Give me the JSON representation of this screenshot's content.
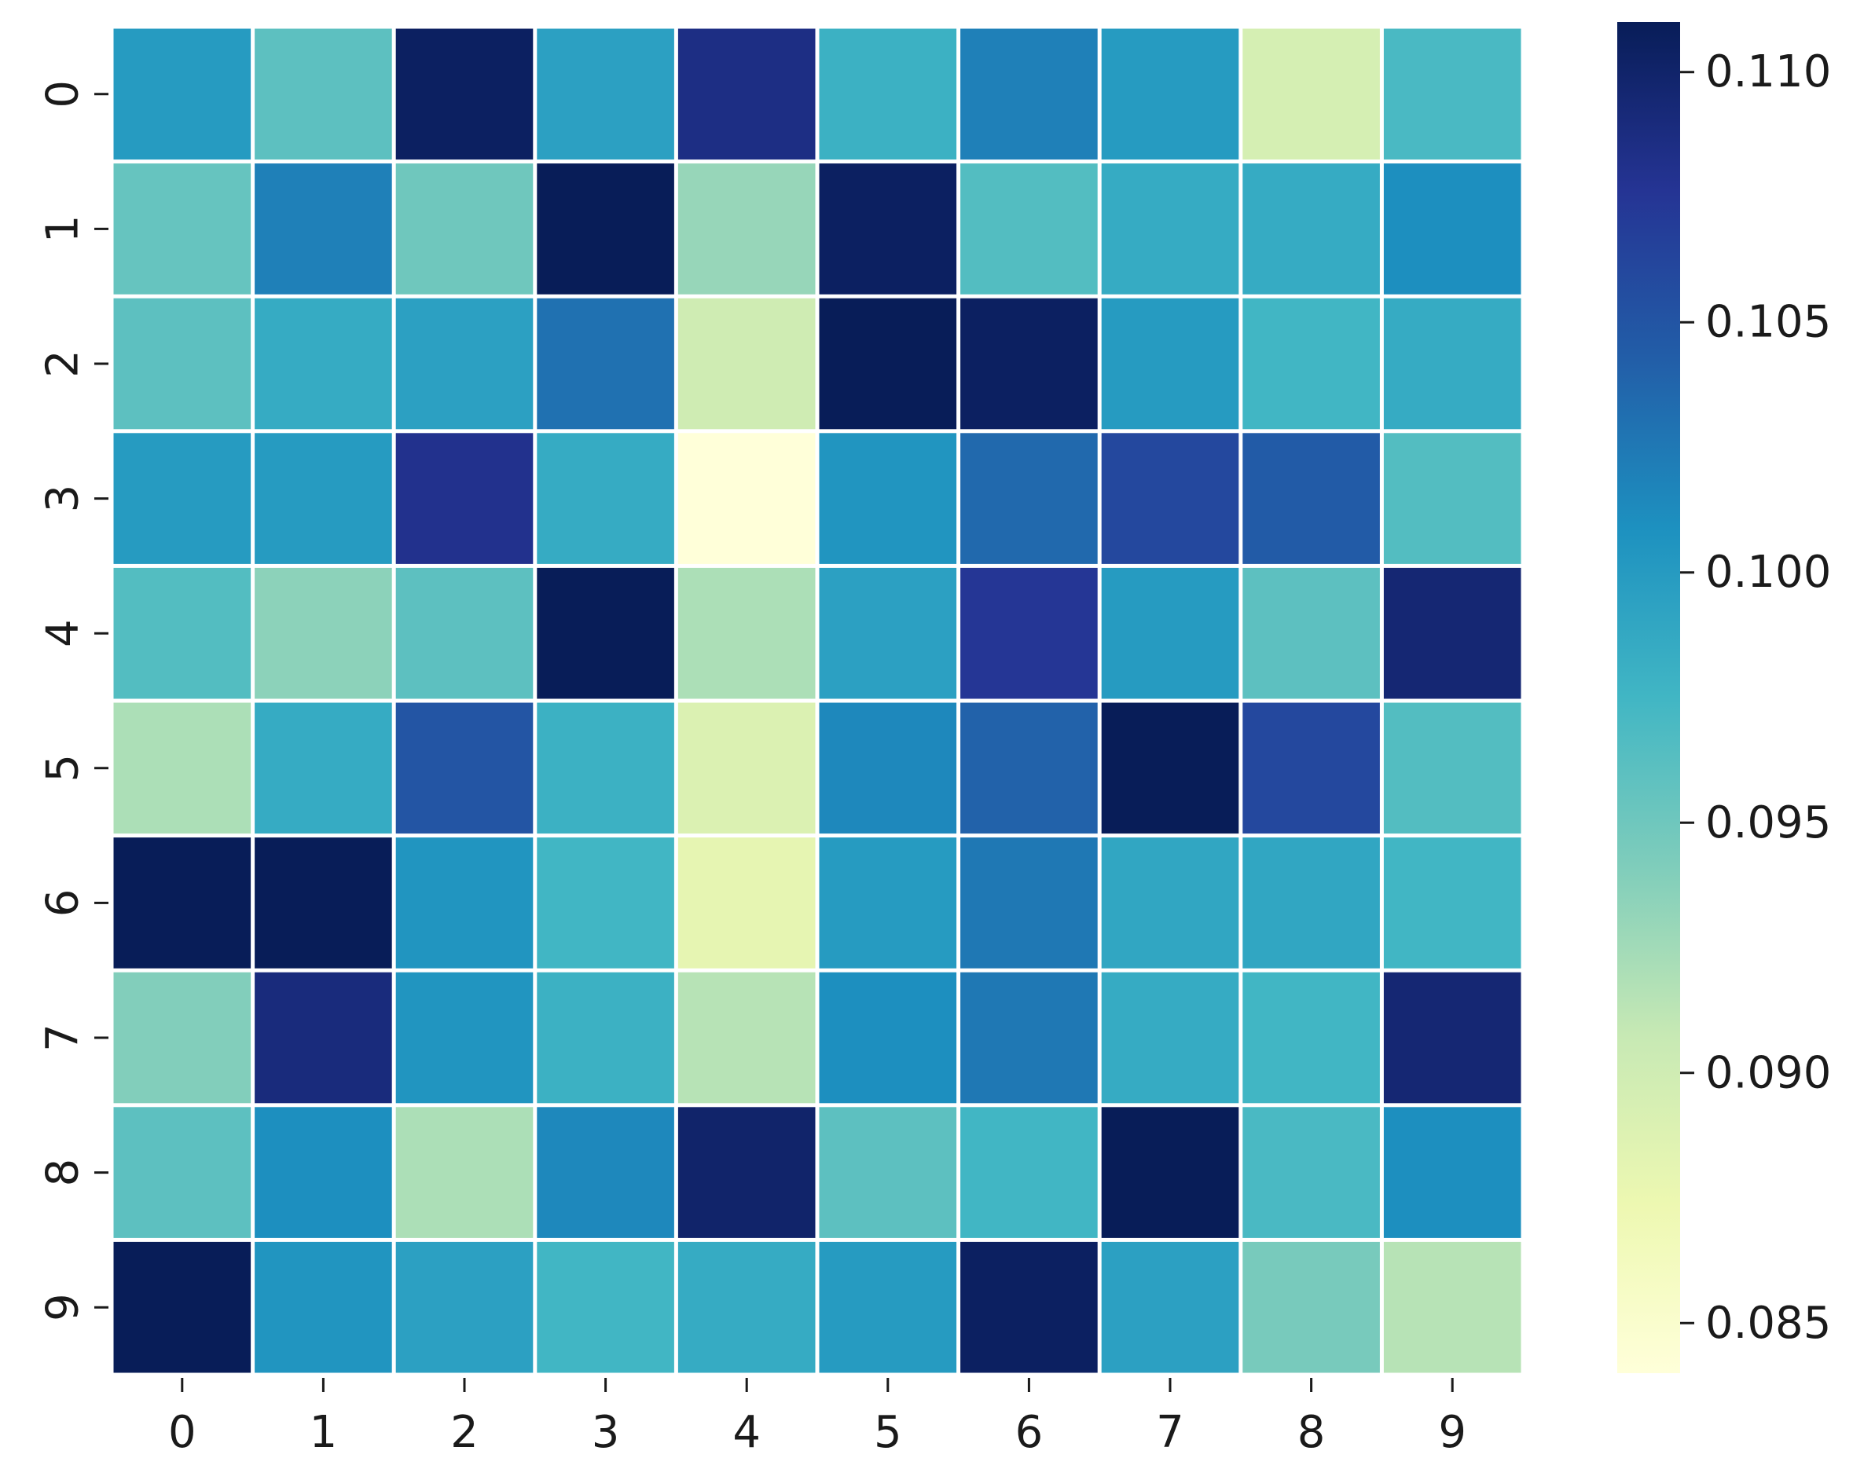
{
  "chart_data": {
    "type": "heatmap",
    "title": "",
    "xlabel": "",
    "ylabel": "",
    "x_categories": [
      "0",
      "1",
      "2",
      "3",
      "4",
      "5",
      "6",
      "7",
      "8",
      "9"
    ],
    "y_categories": [
      "0",
      "1",
      "2",
      "3",
      "4",
      "5",
      "6",
      "7",
      "8",
      "9"
    ],
    "values": [
      [
        0.1,
        0.096,
        0.1105,
        0.0995,
        0.1085,
        0.098,
        0.102,
        0.1,
        0.0895,
        0.097
      ],
      [
        0.0955,
        0.102,
        0.095,
        0.111,
        0.093,
        0.1105,
        0.0965,
        0.0985,
        0.0985,
        0.101
      ],
      [
        0.096,
        0.0985,
        0.0995,
        0.103,
        0.09,
        0.111,
        0.1105,
        0.1,
        0.0975,
        0.0985
      ],
      [
        0.1,
        0.1,
        0.108,
        0.0985,
        0.084,
        0.1005,
        0.1035,
        0.106,
        0.1045,
        0.0965
      ],
      [
        0.0965,
        0.0935,
        0.096,
        0.111,
        0.092,
        0.0995,
        0.1075,
        0.1,
        0.096,
        0.1095
      ],
      [
        0.092,
        0.0985,
        0.105,
        0.098,
        0.089,
        0.1015,
        0.104,
        0.111,
        0.106,
        0.0965
      ],
      [
        0.111,
        0.111,
        0.1005,
        0.0975,
        0.088,
        0.1,
        0.1025,
        0.099,
        0.099,
        0.0975
      ],
      [
        0.094,
        0.109,
        0.1005,
        0.098,
        0.0915,
        0.101,
        0.1025,
        0.0985,
        0.0975,
        0.1095
      ],
      [
        0.096,
        0.101,
        0.092,
        0.1015,
        0.11,
        0.096,
        0.0975,
        0.111,
        0.097,
        0.101
      ],
      [
        0.111,
        0.1005,
        0.0995,
        0.0975,
        0.0985,
        0.1,
        0.1105,
        0.0995,
        0.0945,
        0.0915
      ]
    ],
    "colorbar": {
      "vmin": 0.084,
      "vmax": 0.111,
      "ticks": [
        0.085,
        0.09,
        0.095,
        0.1,
        0.105,
        0.11
      ],
      "tick_labels": [
        "0.085",
        "0.090",
        "0.095",
        "0.100",
        "0.105",
        "0.110"
      ]
    },
    "colormap": "YlGnBu",
    "colormap_stops": [
      [
        0.0,
        "#ffffd9"
      ],
      [
        0.125,
        "#edf8b1"
      ],
      [
        0.25,
        "#c7e9b4"
      ],
      [
        0.375,
        "#7fcdbb"
      ],
      [
        0.5,
        "#41b6c4"
      ],
      [
        0.625,
        "#1d91c0"
      ],
      [
        0.75,
        "#225ea8"
      ],
      [
        0.875,
        "#253494"
      ],
      [
        1.0,
        "#081d58"
      ]
    ],
    "grid": false,
    "legend": "colorbar-right"
  }
}
